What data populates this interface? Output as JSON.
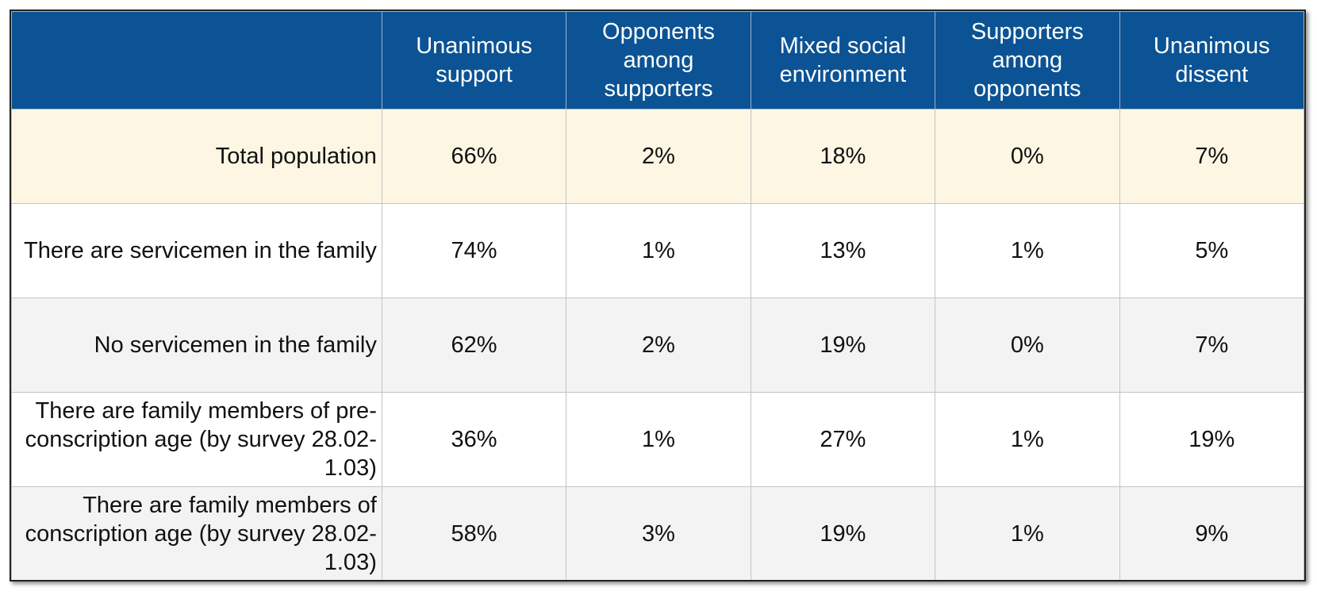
{
  "chart_data": {
    "type": "table",
    "columns": [
      "",
      "Unanimous support",
      "Opponents among supporters",
      "Mixed social environment",
      "Supporters among opponents",
      "Unanimous dissent"
    ],
    "rows": [
      {
        "label": "Total population",
        "values": [
          "66%",
          "2%",
          "18%",
          "0%",
          "7%"
        ]
      },
      {
        "label": "There are servicemen in the family",
        "values": [
          "74%",
          "1%",
          "13%",
          "1%",
          "5%"
        ]
      },
      {
        "label": "No servicemen in the family",
        "values": [
          "62%",
          "2%",
          "19%",
          "0%",
          "7%"
        ]
      },
      {
        "label": "There are family members of pre-conscription age (by survey 28.02-1.03)",
        "values": [
          "36%",
          "1%",
          "27%",
          "1%",
          "19%"
        ]
      },
      {
        "label": "There are family members of conscription age (by survey 28.02-1.03)",
        "values": [
          "58%",
          "3%",
          "19%",
          "1%",
          "9%"
        ]
      }
    ]
  },
  "colors": {
    "header_bg": "#0b5394",
    "header_text": "#ffffff",
    "highlight_row_bg": "#fdf6e3",
    "alt_row_bg": "#f3f3f3",
    "plain_row_bg": "#ffffff",
    "grid_line": "#c4c4c4"
  }
}
